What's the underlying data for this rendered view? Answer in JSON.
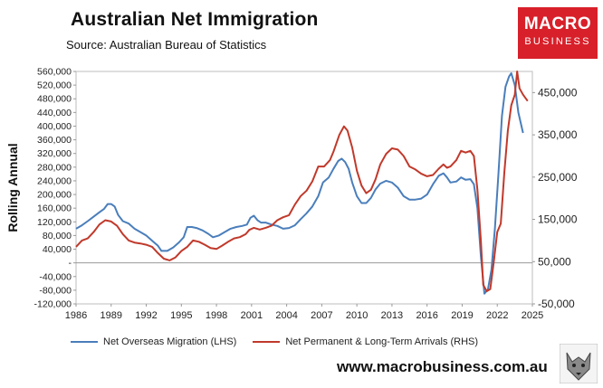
{
  "header": {
    "title": "Australian Net Immigration",
    "subtitle": "Source: Australian Bureau of Statistics"
  },
  "logo": {
    "line1": "MACRO",
    "line2": "BUSINESS",
    "color": "#d8202a"
  },
  "footer": {
    "website": "www.macrobusiness.com.au",
    "mascot_icon": "wolf-mascot-icon"
  },
  "chart_data": {
    "type": "line",
    "title": "Australian Net Immigration",
    "ylabel": "Rolling Annual",
    "grid": false,
    "legend_position": "bottom",
    "x_ticks": [
      "1986",
      "1989",
      "1992",
      "1995",
      "1998",
      "2001",
      "2004",
      "2007",
      "2010",
      "2013",
      "2016",
      "2019",
      "2022",
      "2025"
    ],
    "xlim": [
      1986,
      2025
    ],
    "y_left": {
      "ylim": [
        -120000,
        560000
      ],
      "ticks": [
        -120000,
        -80000,
        -40000,
        0,
        40000,
        80000,
        120000,
        160000,
        200000,
        240000,
        280000,
        320000,
        360000,
        400000,
        440000,
        480000,
        520000,
        560000
      ],
      "tick_labels": [
        "-120,000",
        "-80,000",
        "-40,000",
        "-",
        "40,000",
        "80,000",
        "120,000",
        "160,000",
        "200,000",
        "240,000",
        "280,000",
        "320,000",
        "360,000",
        "400,000",
        "440,000",
        "480,000",
        "520,000",
        "560,000"
      ]
    },
    "y_right": {
      "ylim": [
        -50000,
        500000
      ],
      "ticks": [
        -50000,
        50000,
        150000,
        250000,
        350000,
        450000
      ],
      "tick_labels": [
        "-50,000",
        "50,000",
        "150,000",
        "250,000",
        "350,000",
        "450,000"
      ]
    },
    "series": [
      {
        "name": "Net Overseas Migration (LHS)",
        "axis": "left",
        "color": "#4a7ebb",
        "points": [
          [
            1986.0,
            100000
          ],
          [
            1986.5,
            110000
          ],
          [
            1987.0,
            122000
          ],
          [
            1987.5,
            135000
          ],
          [
            1988.0,
            148000
          ],
          [
            1988.4,
            158000
          ],
          [
            1988.7,
            172000
          ],
          [
            1989.0,
            172000
          ],
          [
            1989.3,
            165000
          ],
          [
            1989.6,
            140000
          ],
          [
            1990.0,
            122000
          ],
          [
            1990.5,
            115000
          ],
          [
            1991.0,
            100000
          ],
          [
            1991.5,
            90000
          ],
          [
            1992.0,
            80000
          ],
          [
            1992.5,
            65000
          ],
          [
            1993.0,
            50000
          ],
          [
            1993.3,
            35000
          ],
          [
            1993.8,
            35000
          ],
          [
            1994.3,
            45000
          ],
          [
            1994.8,
            60000
          ],
          [
            1995.2,
            75000
          ],
          [
            1995.5,
            105000
          ],
          [
            1995.9,
            105000
          ],
          [
            1996.3,
            102000
          ],
          [
            1996.8,
            95000
          ],
          [
            1997.3,
            85000
          ],
          [
            1997.7,
            75000
          ],
          [
            1998.2,
            80000
          ],
          [
            1998.7,
            90000
          ],
          [
            1999.2,
            100000
          ],
          [
            1999.7,
            105000
          ],
          [
            2000.2,
            108000
          ],
          [
            2000.6,
            112000
          ],
          [
            2000.9,
            132000
          ],
          [
            2001.2,
            138000
          ],
          [
            2001.5,
            125000
          ],
          [
            2001.8,
            118000
          ],
          [
            2002.2,
            118000
          ],
          [
            2002.7,
            112000
          ],
          [
            2003.2,
            108000
          ],
          [
            2003.7,
            100000
          ],
          [
            2004.2,
            102000
          ],
          [
            2004.7,
            110000
          ],
          [
            2005.2,
            128000
          ],
          [
            2005.7,
            145000
          ],
          [
            2006.2,
            165000
          ],
          [
            2006.7,
            195000
          ],
          [
            2007.1,
            235000
          ],
          [
            2007.6,
            250000
          ],
          [
            2008.0,
            275000
          ],
          [
            2008.4,
            298000
          ],
          [
            2008.7,
            305000
          ],
          [
            2009.0,
            295000
          ],
          [
            2009.3,
            275000
          ],
          [
            2009.6,
            235000
          ],
          [
            2010.0,
            195000
          ],
          [
            2010.4,
            175000
          ],
          [
            2010.8,
            175000
          ],
          [
            2011.2,
            190000
          ],
          [
            2011.6,
            215000
          ],
          [
            2012.0,
            232000
          ],
          [
            2012.5,
            240000
          ],
          [
            2013.0,
            235000
          ],
          [
            2013.5,
            220000
          ],
          [
            2014.0,
            195000
          ],
          [
            2014.5,
            185000
          ],
          [
            2015.0,
            185000
          ],
          [
            2015.5,
            188000
          ],
          [
            2016.0,
            200000
          ],
          [
            2016.5,
            230000
          ],
          [
            2017.0,
            255000
          ],
          [
            2017.4,
            262000
          ],
          [
            2017.7,
            250000
          ],
          [
            2018.0,
            235000
          ],
          [
            2018.5,
            238000
          ],
          [
            2018.9,
            250000
          ],
          [
            2019.3,
            243000
          ],
          [
            2019.7,
            245000
          ],
          [
            2020.0,
            230000
          ],
          [
            2020.3,
            160000
          ],
          [
            2020.6,
            20000
          ],
          [
            2020.9,
            -90000
          ],
          [
            2021.2,
            -78000
          ],
          [
            2021.5,
            -20000
          ],
          [
            2021.8,
            100000
          ],
          [
            2022.1,
            260000
          ],
          [
            2022.4,
            430000
          ],
          [
            2022.7,
            515000
          ],
          [
            2023.0,
            545000
          ],
          [
            2023.2,
            555000
          ],
          [
            2023.5,
            520000
          ],
          [
            2023.8,
            440000
          ],
          [
            2024.2,
            380000
          ]
        ]
      },
      {
        "name": "Net Permanent & Long-Term Arrivals (RHS)",
        "axis": "right",
        "color": "#c0392b",
        "points": [
          [
            1986.0,
            85000
          ],
          [
            1986.5,
            100000
          ],
          [
            1987.0,
            105000
          ],
          [
            1987.5,
            120000
          ],
          [
            1988.0,
            138000
          ],
          [
            1988.5,
            148000
          ],
          [
            1989.0,
            145000
          ],
          [
            1989.5,
            135000
          ],
          [
            1990.0,
            115000
          ],
          [
            1990.5,
            100000
          ],
          [
            1991.0,
            95000
          ],
          [
            1991.5,
            93000
          ],
          [
            1992.0,
            90000
          ],
          [
            1992.5,
            85000
          ],
          [
            1993.0,
            70000
          ],
          [
            1993.5,
            57000
          ],
          [
            1994.0,
            53000
          ],
          [
            1994.5,
            60000
          ],
          [
            1995.0,
            75000
          ],
          [
            1995.5,
            85000
          ],
          [
            1996.0,
            100000
          ],
          [
            1996.5,
            97000
          ],
          [
            1997.0,
            90000
          ],
          [
            1997.5,
            82000
          ],
          [
            1998.0,
            80000
          ],
          [
            1998.5,
            88000
          ],
          [
            1999.0,
            97000
          ],
          [
            1999.5,
            105000
          ],
          [
            2000.0,
            108000
          ],
          [
            2000.5,
            115000
          ],
          [
            2000.8,
            125000
          ],
          [
            2001.2,
            130000
          ],
          [
            2001.7,
            126000
          ],
          [
            2002.2,
            130000
          ],
          [
            2002.7,
            135000
          ],
          [
            2003.2,
            148000
          ],
          [
            2003.7,
            155000
          ],
          [
            2004.2,
            160000
          ],
          [
            2004.7,
            185000
          ],
          [
            2005.2,
            205000
          ],
          [
            2005.7,
            218000
          ],
          [
            2006.2,
            240000
          ],
          [
            2006.7,
            275000
          ],
          [
            2007.2,
            275000
          ],
          [
            2007.7,
            290000
          ],
          [
            2008.0,
            310000
          ],
          [
            2008.5,
            350000
          ],
          [
            2008.9,
            370000
          ],
          [
            2009.2,
            360000
          ],
          [
            2009.6,
            320000
          ],
          [
            2010.0,
            265000
          ],
          [
            2010.4,
            230000
          ],
          [
            2010.8,
            212000
          ],
          [
            2011.2,
            220000
          ],
          [
            2011.6,
            245000
          ],
          [
            2012.0,
            280000
          ],
          [
            2012.5,
            305000
          ],
          [
            2013.0,
            318000
          ],
          [
            2013.5,
            315000
          ],
          [
            2014.0,
            300000
          ],
          [
            2014.5,
            275000
          ],
          [
            2015.0,
            268000
          ],
          [
            2015.5,
            258000
          ],
          [
            2016.0,
            252000
          ],
          [
            2016.5,
            255000
          ],
          [
            2017.0,
            270000
          ],
          [
            2017.4,
            280000
          ],
          [
            2017.7,
            272000
          ],
          [
            2018.0,
            275000
          ],
          [
            2018.5,
            290000
          ],
          [
            2018.9,
            312000
          ],
          [
            2019.3,
            308000
          ],
          [
            2019.7,
            312000
          ],
          [
            2020.0,
            300000
          ],
          [
            2020.3,
            220000
          ],
          [
            2020.6,
            100000
          ],
          [
            2020.8,
            -5000
          ],
          [
            2021.1,
            -20000
          ],
          [
            2021.4,
            -15000
          ],
          [
            2021.7,
            50000
          ],
          [
            2022.0,
            120000
          ],
          [
            2022.3,
            140000
          ],
          [
            2022.6,
            260000
          ],
          [
            2022.9,
            360000
          ],
          [
            2023.2,
            420000
          ],
          [
            2023.5,
            445000
          ],
          [
            2023.7,
            500000
          ],
          [
            2023.9,
            460000
          ],
          [
            2024.2,
            445000
          ],
          [
            2024.6,
            430000
          ]
        ]
      }
    ]
  }
}
